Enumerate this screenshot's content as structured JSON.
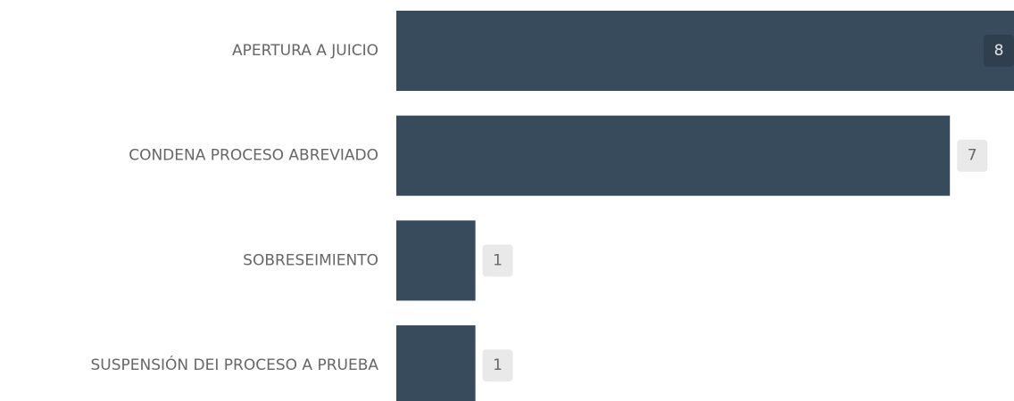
{
  "chart_data": {
    "type": "bar",
    "orientation": "horizontal",
    "categories": [
      "APERTURA A JUICIO",
      "CONDENA PROCESO ABREVIADO",
      "SOBRESEIMIENTO",
      "SUSPENSIÓN DEI PROCESO A PRUEBA"
    ],
    "values": [
      8,
      7,
      1,
      1
    ],
    "color": "#374b5c"
  }
}
